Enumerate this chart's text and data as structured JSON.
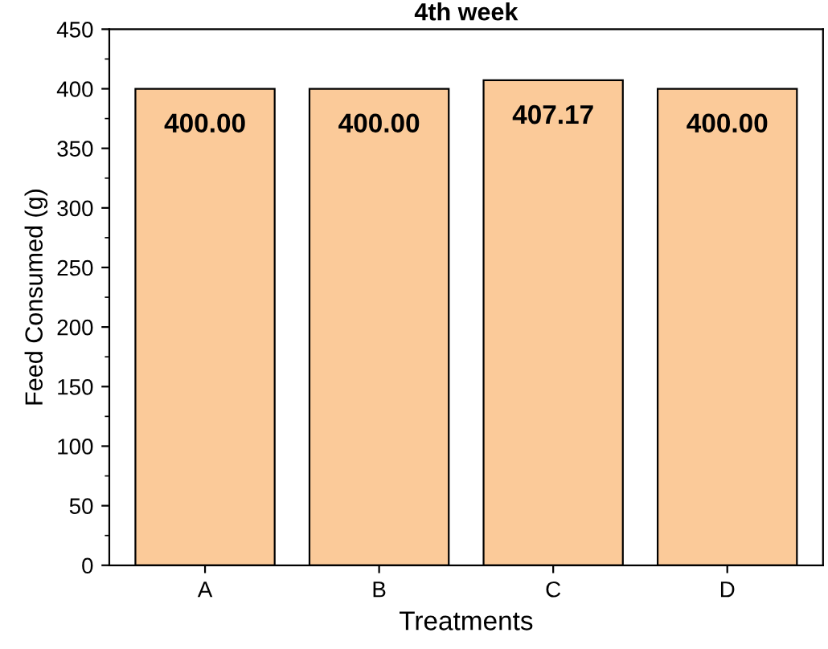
{
  "chart_data": {
    "type": "bar",
    "title": "4th week",
    "xlabel": "Treatments",
    "ylabel": "Feed Consumed (g)",
    "categories": [
      "A",
      "B",
      "C",
      "D"
    ],
    "values": [
      400,
      400,
      407.17,
      400
    ],
    "value_labels": [
      "400.00",
      "400.00",
      "407.17",
      "400.00"
    ],
    "color": "#fbca99",
    "ylim": [
      0,
      450
    ],
    "yticks": [
      0,
      50,
      100,
      150,
      200,
      250,
      300,
      350,
      400,
      450
    ],
    "grid": false,
    "legend": false
  }
}
